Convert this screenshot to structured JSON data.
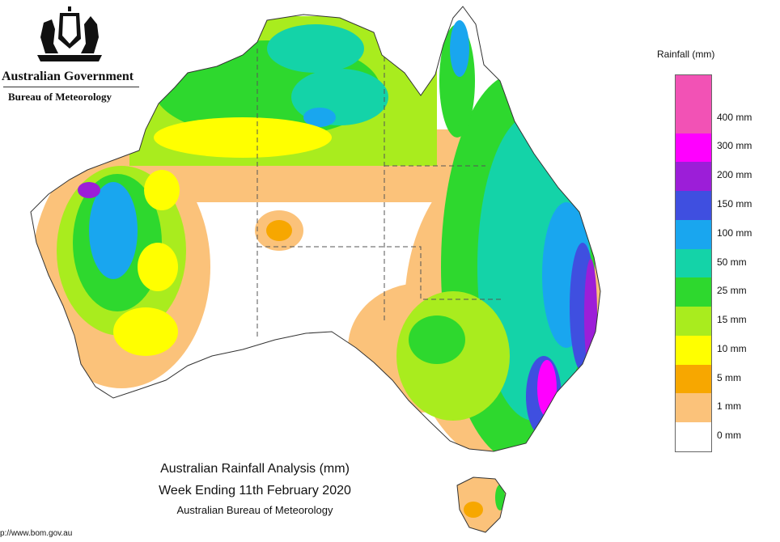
{
  "branding": {
    "government": "Australian Government",
    "bureau": "Bureau of Meteorology",
    "crest_icon": "coat-of-arms-icon"
  },
  "legend": {
    "title": "Rainfall (mm)",
    "items": [
      {
        "label": "400 mm",
        "color": "#f252b5"
      },
      {
        "label": "300 mm",
        "color": "#ff00ff"
      },
      {
        "label": "200 mm",
        "color": "#9c1ed8"
      },
      {
        "label": "150 mm",
        "color": "#3f4fe0"
      },
      {
        "label": "100 mm",
        "color": "#19a6ef"
      },
      {
        "label": "50 mm",
        "color": "#14d3a8"
      },
      {
        "label": "25 mm",
        "color": "#2ed82e"
      },
      {
        "label": "15 mm",
        "color": "#a9ec1e"
      },
      {
        "label": "10 mm",
        "color": "#ffff00"
      },
      {
        "label": "5 mm",
        "color": "#f7a700"
      },
      {
        "label": "1 mm",
        "color": "#fbc27a"
      },
      {
        "label": "0 mm",
        "color": "#ffffff"
      }
    ]
  },
  "caption": {
    "line1": "Australian Rainfall Analysis (mm)",
    "line2": "Week Ending 11th February 2020",
    "line3": "Australian Bureau of Meteorology"
  },
  "footer": {
    "url": "p://www.bom.gov.au"
  }
}
